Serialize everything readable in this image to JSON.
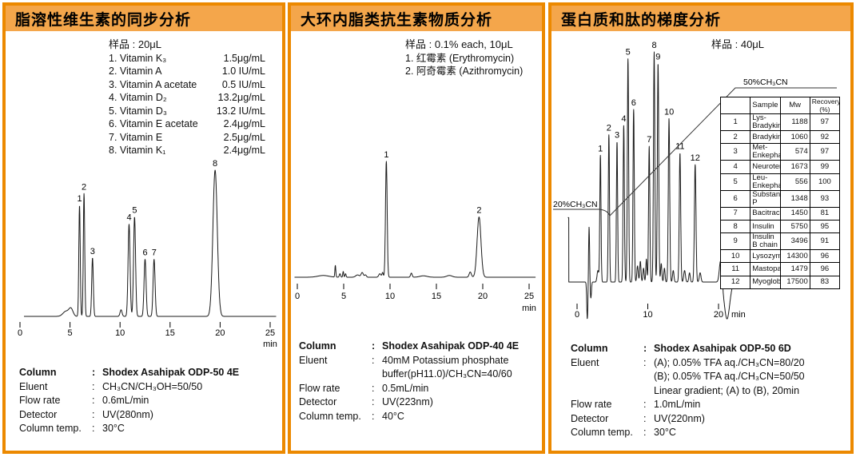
{
  "page": {
    "accent_border_color": "#ec8900",
    "header_fill_color": "#f4a64b",
    "trace_color": "#1a1a1a"
  },
  "panels": [
    {
      "title": "脂溶性维生素的同步分析",
      "sample_title": "样品 : 20μL",
      "sample_items": [
        {
          "name": "1. Vitamin K₃",
          "value": "1.5μg/mL"
        },
        {
          "name": "2. Vitamin A",
          "value": "1.0 IU/mL"
        },
        {
          "name": "3. Vitamin A acetate",
          "value": "0.5 IU/mL"
        },
        {
          "name": "4. Vitamin D₂",
          "value": "13.2μg/mL"
        },
        {
          "name": "5. Vitamin D₃",
          "value": "13.2 IU/mL"
        },
        {
          "name": "6. Vitamin E acetate",
          "value": "2.4μg/mL"
        },
        {
          "name": "7. Vitamin E",
          "value": "2.5μg/mL"
        },
        {
          "name": "8. Vitamin K₁",
          "value": "2.4μg/mL"
        }
      ],
      "specs": [
        {
          "label": "Column",
          "value": "Shodex Asahipak ODP-50 4E",
          "bold": true
        },
        {
          "label": "Eluent",
          "value": "CH₃CN/CH₃OH=50/50"
        },
        {
          "label": "Flow rate",
          "value": "0.6mL/min"
        },
        {
          "label": "Detector",
          "value": "UV(280nm)"
        },
        {
          "label": "Column temp.",
          "value": "30°C"
        }
      ]
    },
    {
      "title": "大环内脂类抗生素物质分析",
      "sample_title": "样品 : 0.1% each, 10μL",
      "sample_items": [
        {
          "name": "1. 红霉素 (Erythromycin)"
        },
        {
          "name": "2. 阿奇霉素 (Azithromycin)"
        }
      ],
      "specs": [
        {
          "label": "Column",
          "value": "Shodex Asahipak ODP-40 4E",
          "bold": true
        },
        {
          "label": "Eluent",
          "value": "40mM Potassium phosphate\nbuffer(pH11.0)/CH₃CN=40/60"
        },
        {
          "label": "Flow rate",
          "value": "0.5mL/min"
        },
        {
          "label": "Detector",
          "value": "UV(223nm)"
        },
        {
          "label": "Column temp.",
          "value": "40°C"
        }
      ]
    },
    {
      "title": "蛋白质和肽的梯度分析",
      "sample_title": "样品 : 40μL",
      "table": {
        "headers": [
          "",
          "Sample",
          "Mw",
          "Recovery\n(%)"
        ],
        "rows": [
          [
            "1",
            "Lys-Bradykinin",
            "1188",
            "97"
          ],
          [
            "2",
            "Bradykinin",
            "1060",
            "92"
          ],
          [
            "3",
            "Met-Enkephalin",
            "574",
            "97"
          ],
          [
            "4",
            "Neurotensin",
            "1673",
            "99"
          ],
          [
            "5",
            "Leu-Enkephalin",
            "556",
            "100"
          ],
          [
            "6",
            "Substance P",
            "1348",
            "93"
          ],
          [
            "7",
            "Bacitracin",
            "1450",
            "81"
          ],
          [
            "8",
            "Insulin",
            "5750",
            "95"
          ],
          [
            "9",
            "Insulin B chain",
            "3496",
            "91"
          ],
          [
            "10",
            "Lysozyme",
            "14300",
            "96"
          ],
          [
            "11",
            "Mastoparan",
            "1479",
            "96"
          ],
          [
            "12",
            "Myoglobin",
            "17500",
            "83"
          ]
        ]
      },
      "specs": [
        {
          "label": "Column",
          "value": "Shodex Asahipak ODP-50 6D",
          "bold": true
        },
        {
          "label": "Eluent",
          "value": "(A); 0.05% TFA aq./CH₃CN=80/20\n(B); 0.05% TFA aq./CH₃CN=50/50\nLinear gradient; (A) to (B), 20min"
        },
        {
          "label": "Flow rate",
          "value": "1.0mL/min"
        },
        {
          "label": "Detector",
          "value": "UV(220nm)"
        },
        {
          "label": "Column temp.",
          "value": "30°C"
        }
      ]
    }
  ],
  "chart_data": [
    {
      "type": "line",
      "subtype": "hplc-chromatogram",
      "panel": "脂溶性维生素的同步分析",
      "xlabel": "min",
      "x_ticks": [
        0,
        5,
        10,
        15,
        20,
        25
      ],
      "x_range": [
        0.4,
        25.6
      ],
      "y_axis": "detector response (unlabeled, relative units 0-1)",
      "peaks": [
        {
          "label": "1",
          "time_min": 5.95,
          "rel_height": 0.76,
          "sigma_min": 0.07
        },
        {
          "label": "2",
          "time_min": 6.4,
          "rel_height": 0.84,
          "sigma_min": 0.07
        },
        {
          "label": "3",
          "time_min": 7.25,
          "rel_height": 0.4,
          "sigma_min": 0.08
        },
        {
          "label": "4",
          "time_min": 10.9,
          "rel_height": 0.63,
          "sigma_min": 0.1
        },
        {
          "label": "5",
          "time_min": 11.45,
          "rel_height": 0.68,
          "sigma_min": 0.1
        },
        {
          "label": "6",
          "time_min": 12.5,
          "rel_height": 0.39,
          "sigma_min": 0.1
        },
        {
          "label": "7",
          "time_min": 13.4,
          "rel_height": 0.39,
          "sigma_min": 0.1
        },
        {
          "label": "8",
          "time_min": 19.5,
          "rel_height": 1.0,
          "sigma_min": 0.22
        }
      ],
      "baseline_features": [
        {
          "time_min": 4.6,
          "rel_height": 0.035,
          "sigma_min": 0.3
        },
        {
          "time_min": 5.1,
          "rel_height": 0.05,
          "sigma_min": 0.2
        },
        {
          "time_min": 10.1,
          "rel_height": 0.045,
          "sigma_min": 0.1
        }
      ]
    },
    {
      "type": "line",
      "subtype": "hplc-chromatogram",
      "panel": "大环内脂类抗生素物质分析",
      "xlabel": "min",
      "x_ticks": [
        0,
        5,
        10,
        15,
        20,
        25
      ],
      "x_range": [
        -0.3,
        25.7
      ],
      "y_axis": "detector response (unlabeled, relative units 0-1)",
      "peaks": [
        {
          "label": "1",
          "time_min": 9.6,
          "rel_height": 1.0,
          "sigma_min": 0.09
        },
        {
          "label": "2",
          "time_min": 19.6,
          "rel_height": 0.52,
          "sigma_min": 0.21
        }
      ],
      "baseline_features": [
        {
          "time_min": 2.8,
          "rel_height": 0.015,
          "sigma_min": 0.6
        },
        {
          "time_min": 4.1,
          "rel_height": 0.1,
          "sigma_min": 0.05
        },
        {
          "time_min": 4.6,
          "rel_height": 0.03,
          "sigma_min": 0.07
        },
        {
          "time_min": 4.95,
          "rel_height": 0.05,
          "sigma_min": 0.05
        },
        {
          "time_min": 5.2,
          "rel_height": 0.03,
          "sigma_min": 0.06
        },
        {
          "time_min": 6.5,
          "rel_height": 0.02,
          "sigma_min": 0.2
        },
        {
          "time_min": 7.0,
          "rel_height": 0.04,
          "sigma_min": 0.12
        },
        {
          "time_min": 7.35,
          "rel_height": 0.02,
          "sigma_min": 0.1
        },
        {
          "time_min": 8.9,
          "rel_height": 0.03,
          "sigma_min": 0.12
        },
        {
          "time_min": 9.2,
          "rel_height": 0.04,
          "sigma_min": 0.07
        },
        {
          "time_min": 12.3,
          "rel_height": 0.035,
          "sigma_min": 0.09
        },
        {
          "time_min": 13.6,
          "rel_height": 0.012,
          "sigma_min": 0.4
        },
        {
          "time_min": 16.4,
          "rel_height": 0.015,
          "sigma_min": 0.3
        },
        {
          "time_min": 18.65,
          "rel_height": 0.045,
          "sigma_min": 0.12
        }
      ]
    },
    {
      "type": "line",
      "subtype": "hplc-chromatogram-gradient",
      "panel": "蛋白质和肽的梯度分析",
      "xlabel": "min",
      "x_ticks": [
        0,
        10,
        20
      ],
      "x_range": [
        -1.3,
        26.9
      ],
      "y_axis": "detector response (unlabeled, relative units 0-1)",
      "start_level": {
        "time_min": -1.18,
        "rel_height": 0.28
      },
      "peaks": [
        {
          "label": "1",
          "time_min": 3.3,
          "rel_height": 0.55,
          "sigma_min": 0.085
        },
        {
          "label": "2",
          "time_min": 4.5,
          "rel_height": 0.64,
          "sigma_min": 0.085
        },
        {
          "label": "3",
          "time_min": 5.65,
          "rel_height": 0.61,
          "sigma_min": 0.085
        },
        {
          "label": "4",
          "time_min": 6.6,
          "rel_height": 0.68,
          "sigma_min": 0.09
        },
        {
          "label": "5",
          "time_min": 7.2,
          "rel_height": 0.97,
          "sigma_min": 0.09
        },
        {
          "label": "6",
          "time_min": 8.0,
          "rel_height": 0.75,
          "sigma_min": 0.09
        },
        {
          "label": "7",
          "time_min": 10.2,
          "rel_height": 0.59,
          "sigma_min": 0.09
        },
        {
          "label": "8",
          "time_min": 10.9,
          "rel_height": 1.0,
          "sigma_min": 0.095
        },
        {
          "label": "9",
          "time_min": 11.45,
          "rel_height": 0.95,
          "sigma_min": 0.095
        },
        {
          "label": "10",
          "time_min": 13.0,
          "rel_height": 0.71,
          "sigma_min": 0.1
        },
        {
          "label": "11",
          "time_min": 14.55,
          "rel_height": 0.56,
          "sigma_min": 0.1
        },
        {
          "label": "12",
          "time_min": 16.7,
          "rel_height": 0.51,
          "sigma_min": 0.11
        }
      ],
      "baseline_features": [
        {
          "time_min": 1.45,
          "rel_height": -0.16,
          "sigma_min": 0.08
        },
        {
          "time_min": 1.7,
          "rel_height": 0.24,
          "sigma_min": 0.07
        },
        {
          "time_min": 1.95,
          "rel_height": -0.07,
          "sigma_min": 0.08
        },
        {
          "time_min": 2.95,
          "rel_height": 0.05,
          "sigma_min": 0.12
        },
        {
          "time_min": 8.55,
          "rel_height": 0.07,
          "sigma_min": 0.1
        },
        {
          "time_min": 8.95,
          "rel_height": 0.09,
          "sigma_min": 0.09
        },
        {
          "time_min": 9.4,
          "rel_height": 0.06,
          "sigma_min": 0.09
        },
        {
          "time_min": 9.8,
          "rel_height": 0.1,
          "sigma_min": 0.08
        },
        {
          "time_min": 11.9,
          "rel_height": 0.08,
          "sigma_min": 0.09
        },
        {
          "time_min": 12.35,
          "rel_height": 0.06,
          "sigma_min": 0.09
        },
        {
          "time_min": 13.6,
          "rel_height": 0.05,
          "sigma_min": 0.1
        },
        {
          "time_min": 15.2,
          "rel_height": 0.05,
          "sigma_min": 0.12
        },
        {
          "time_min": 15.9,
          "rel_height": 0.04,
          "sigma_min": 0.1
        },
        {
          "time_min": 17.4,
          "rel_height": 0.04,
          "sigma_min": 0.12
        },
        {
          "time_min": 20.3,
          "rel_height": 0.1,
          "sigma_min": 0.18
        },
        {
          "time_min": 21.2,
          "rel_height": -0.16,
          "sigma_min": 0.38
        }
      ],
      "gradient": {
        "start_label": "20%CH₃CN",
        "end_label": "50%CH₃CN"
      }
    }
  ]
}
